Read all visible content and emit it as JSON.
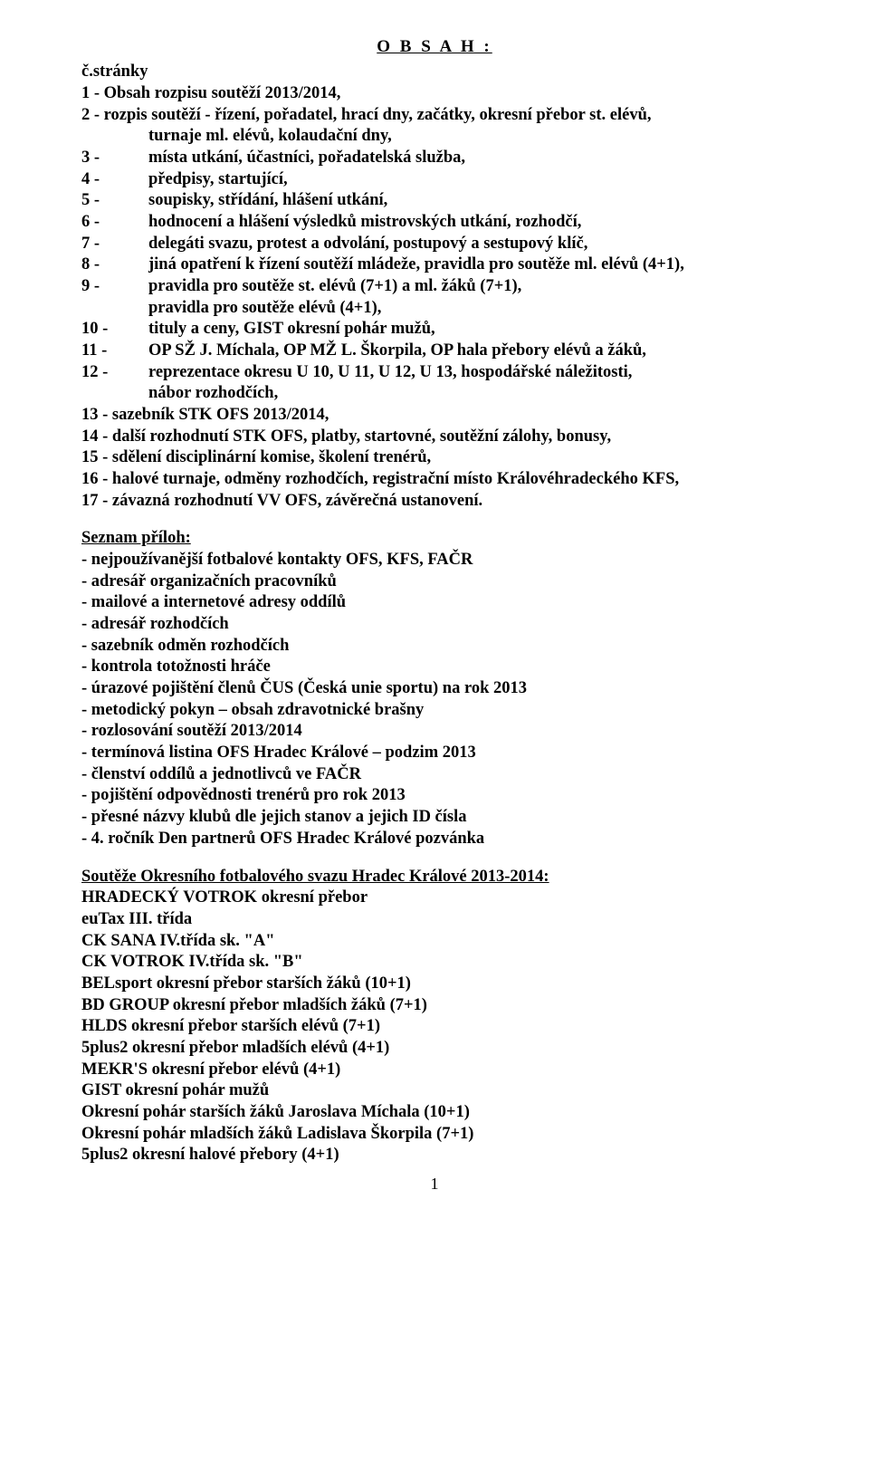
{
  "title": "O B S A H :",
  "left_label": "č.stránky",
  "toc": {
    "l1": "1 - Obsah rozpisu soutěží 2013/2014,",
    "l2": "2 - rozpis soutěží - řízení, pořadatel, hrací dny, začátky, okresní přebor st. elévů,",
    "l2b": "turnaje ml.  elévů, kolaudační dny,",
    "n3": "3 -",
    "t3": "místa utkání, účastníci, pořadatelská služba,",
    "n4": "4 -",
    "t4": "předpisy, startující,",
    "n5": "5 -",
    "t5": "soupisky, střídání, hlášení utkání,",
    "n6": "6 -",
    "t6": "hodnocení a hlášení výsledků mistrovských utkání, rozhodčí,",
    "n7": "7 -",
    "t7": "delegáti svazu, protest a odvolání,  postupový a sestupový klíč,",
    "n8": "8 -",
    "t8": "jiná opatření k řízení soutěží mládeže, pravidla pro soutěže ml. elévů (4+1),",
    "n9": "9 -",
    "t9": "pravidla pro soutěže st. elévů (7+1) a ml. žáků (7+1),",
    "t9b": "pravidla pro soutěže elévů (4+1),",
    "n10": "10 -",
    "t10": "tituly a ceny, GIST okresní pohár mužů,",
    "n11": "11 -",
    "t11": "  OP SŽ J. Míchala, OP MŽ L. Škorpila, OP hala přebory elévů a žáků,",
    "n12": "12 -",
    "t12": "reprezentace okresu U 10,  U 11, U 12, U 13, hospodářské náležitosti,",
    "t12b": "nábor rozhodčích,",
    "l13": "13 - sazebník STK OFS 2013/2014,",
    "l14": "14 - další rozhodnutí STK OFS, platby, startovné, soutěžní zálohy, bonusy,",
    "l15": "15 - sdělení disciplinární komise, školení trenérů,",
    "l16": "16 - halové turnaje, odměny rozhodčích, registrační místo Královéhradeckého KFS,",
    "l17": "17 - závazná rozhodnutí VV OFS, závěrečná ustanovení."
  },
  "seznam_label": "Seznam příloh:",
  "seznam": {
    "s1": "- nejpoužívanější fotbalové kontakty OFS, KFS, FAČR",
    "s2": "- adresář organizačních pracovníků",
    "s3": "- mailové a internetové adresy oddílů",
    "s4": "- adresář rozhodčích",
    "s5": "- sazebník odměn rozhodčích",
    "s6": "- kontrola totožnosti hráče",
    "s7": "- úrazové pojištění členů ČUS (Česká unie sportu) na rok 2013",
    "s8": "- metodický pokyn – obsah zdravotnické brašny",
    "s9": "- rozlosování soutěží 2013/2014",
    "s10": "- termínová listina OFS Hradec Králové – podzim 2013",
    "s11": "- členství oddílů a jednotlivců ve FAČR",
    "s12": "- pojištění odpovědnosti trenérů pro rok 2013",
    "s13": "- přesné názvy klubů dle jejich stanov a jejich ID čísla",
    "s14": "- 4. ročník Den partnerů OFS Hradec Králové pozvánka"
  },
  "souteze_label": "Soutěže Okresního fotbalového svazu Hradec Králové 2013-2014:",
  "souteze": {
    "c1": "HRADECKÝ VOTROK okresní přebor",
    "c2": "euTax III. třída",
    "c3": "CK SANA IV.třída sk. \"A\"",
    "c4": "CK VOTROK IV.třída sk. \"B\"",
    "c5": "BELsport okresní přebor starších žáků (10+1)",
    "c6": "BD GROUP okresní přebor mladších žáků (7+1)",
    "c7": "HLDS okresní přebor starších elévů (7+1)",
    "c8": "5plus2 okresní přebor mladších elévů (4+1)",
    "c9": "MEKR'S okresní přebor elévů (4+1)",
    "c10": "GIST okresní pohár mužů",
    "c11": "Okresní pohár starších žáků Jaroslava Míchala (10+1)",
    "c12": "Okresní pohár mladších žáků Ladislava Škorpila (7+1)",
    "c13": "5plus2 okresní halové přebory (4+1)"
  },
  "page_number": "1"
}
